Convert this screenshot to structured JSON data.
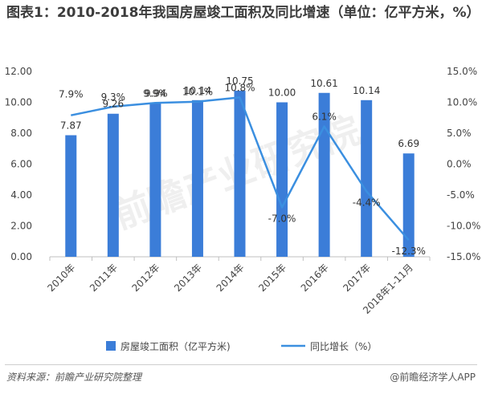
{
  "title_text": "图表1：2010-2018年我国房屋竣工面积及同比增速（单位：亿平方米，%）",
  "footer": {
    "source": "资料来源：前瞻产业研究院整理",
    "brand": "@前瞻经济学人APP"
  },
  "watermark": "前瞻产业研究院",
  "chart_data": {
    "type": "bar",
    "title": "图表1：2010-2018年我国房屋竣工面积及同比增速（单位：亿平方米，%）",
    "categories": [
      "2010年",
      "2011年",
      "2012年",
      "2013年",
      "2014年",
      "2015年",
      "2016年",
      "2017年",
      "2018年1-11月"
    ],
    "y_left": {
      "min": 0,
      "max": 12,
      "step": 2,
      "ticks": [
        "0.00",
        "2.00",
        "4.00",
        "6.00",
        "8.00",
        "10.00",
        "12.00"
      ]
    },
    "y_right": {
      "min": -15,
      "max": 15,
      "step": 5,
      "ticks": [
        "-15.0%",
        "-10.0%",
        "-5.0%",
        "0.0%",
        "5.0%",
        "10.0%",
        "15.0%"
      ]
    },
    "series": [
      {
        "name": "房屋竣工面积（亿平方米)",
        "type": "bar",
        "axis": "left",
        "color": "#3b7dd8",
        "values": [
          7.87,
          9.26,
          9.94,
          10.14,
          10.75,
          10.0,
          10.61,
          10.14,
          6.69
        ],
        "labels": [
          "7.87",
          "9.26",
          "9.94",
          "10.14",
          "10.75",
          "10.00",
          "10.61",
          "10.14",
          "6.69"
        ]
      },
      {
        "name": "同比增长（%）",
        "type": "line",
        "axis": "right",
        "color": "#3b8fe0",
        "values": [
          7.9,
          9.3,
          9.9,
          10.1,
          10.8,
          -7.0,
          6.1,
          -4.4,
          -12.3
        ],
        "labels": [
          "7.9%",
          "9.3%",
          "9.9%",
          "10.1%",
          "10.8%",
          "-7.0%",
          "6.1%",
          "-4.4%",
          "-12.3%"
        ]
      }
    ],
    "legend_position": "bottom",
    "grid": false
  }
}
